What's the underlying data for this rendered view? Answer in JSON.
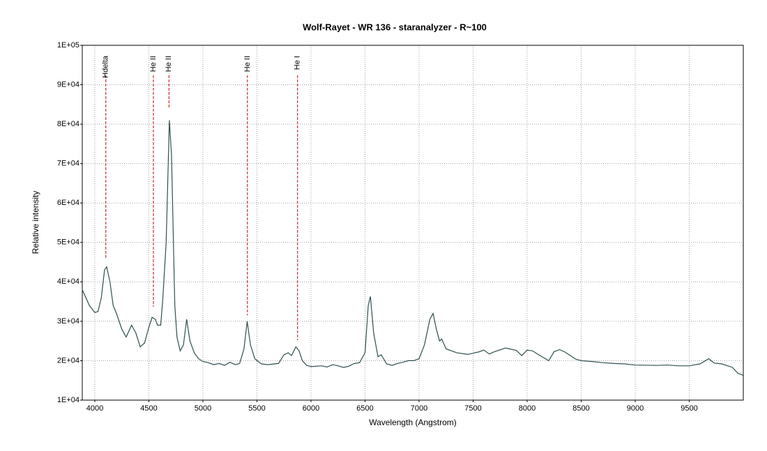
{
  "chart_data": {
    "type": "line",
    "title": "Wolf-Rayet -  WR 136 - staranalyzer - R~100",
    "x_label": "Wavelength (Angstrom)",
    "y_label": "Relative intensity",
    "xlim": [
      3884,
      10000
    ],
    "ylim": [
      10000,
      100000
    ],
    "xticks": [
      4000,
      4500,
      5000,
      5500,
      6000,
      6500,
      7000,
      7500,
      8000,
      8500,
      9000,
      9500
    ],
    "yticks": [
      {
        "value": 10000,
        "label": "1E+04"
      },
      {
        "value": 20000,
        "label": "2E+04"
      },
      {
        "value": 30000,
        "label": "3E+04"
      },
      {
        "value": 40000,
        "label": "4E+04"
      },
      {
        "value": 50000,
        "label": "5E+04"
      },
      {
        "value": 60000,
        "label": "6E+04"
      },
      {
        "value": 70000,
        "label": "7E+04"
      },
      {
        "value": 80000,
        "label": "8E+04"
      },
      {
        "value": 90000,
        "label": "9E+04"
      },
      {
        "value": 100000,
        "label": "1E+05"
      }
    ],
    "grid": true,
    "series": [
      {
        "color": "#2f4f4f",
        "x": [
          3884,
          3950,
          4000,
          4030,
          4060,
          4090,
          4110,
          4140,
          4170,
          4200,
          4250,
          4290,
          4340,
          4380,
          4420,
          4460,
          4500,
          4530,
          4560,
          4580,
          4610,
          4630,
          4660,
          4690,
          4710,
          4740,
          4760,
          4790,
          4820,
          4850,
          4880,
          4920,
          4960,
          5000,
          5050,
          5100,
          5150,
          5200,
          5250,
          5300,
          5340,
          5380,
          5410,
          5440,
          5480,
          5540,
          5600,
          5700,
          5750,
          5790,
          5820,
          5860,
          5890,
          5920,
          5960,
          6000,
          6100,
          6150,
          6200,
          6250,
          6300,
          6350,
          6400,
          6450,
          6500,
          6530,
          6550,
          6580,
          6620,
          6650,
          6700,
          6750,
          6800,
          6850,
          6900,
          6950,
          7000,
          7050,
          7100,
          7130,
          7160,
          7190,
          7210,
          7250,
          7350,
          7450,
          7550,
          7600,
          7650,
          7700,
          7800,
          7900,
          7950,
          8000,
          8050,
          8100,
          8200,
          8250,
          8300,
          8350,
          8450,
          8500,
          8600,
          8700,
          8800,
          8900,
          9000,
          9200,
          9300,
          9400,
          9500,
          9600,
          9680,
          9730,
          9800,
          9900,
          9950,
          10000
        ],
        "values": [
          38000,
          34000,
          32200,
          32500,
          36000,
          43000,
          43800,
          40000,
          34000,
          32000,
          28000,
          26000,
          29000,
          27000,
          23500,
          24500,
          28500,
          31000,
          30500,
          29000,
          29000,
          36000,
          50000,
          81000,
          72000,
          34000,
          26000,
          22500,
          24000,
          30500,
          25000,
          22000,
          20500,
          19800,
          19500,
          19000,
          19300,
          18800,
          19600,
          19000,
          19300,
          23000,
          30000,
          24000,
          20500,
          19200,
          19000,
          19300,
          21500,
          22000,
          21300,
          23500,
          22500,
          20000,
          18800,
          18500,
          18700,
          18400,
          19000,
          18700,
          18300,
          18600,
          19300,
          19500,
          22000,
          34000,
          36300,
          27000,
          21000,
          21500,
          19200,
          18800,
          19300,
          19600,
          20000,
          20000,
          20500,
          24000,
          30500,
          32000,
          28000,
          25000,
          25500,
          23000,
          22000,
          21600,
          22200,
          22700,
          21700,
          22300,
          23200,
          22600,
          21300,
          22700,
          22500,
          21600,
          20000,
          22300,
          22800,
          22200,
          20400,
          20000,
          19800,
          19500,
          19300,
          19200,
          18900,
          18800,
          18900,
          18700,
          18700,
          19200,
          20500,
          19400,
          19200,
          18300,
          16800,
          16300
        ]
      }
    ],
    "annotations": [
      {
        "label": "Hdelta",
        "x": 4102,
        "y": 46000,
        "color": "#cc0000"
      },
      {
        "label": "He II",
        "x": 4542,
        "y": 33700,
        "color": "#cc0000"
      },
      {
        "label": "He II",
        "x": 4686,
        "y": 84000,
        "color": "#cc0000"
      },
      {
        "label": "He II",
        "x": 5412,
        "y": 31500,
        "color": "#cc0000"
      },
      {
        "label": "He I",
        "x": 5876,
        "y": 25200,
        "color": "#cc0000"
      }
    ]
  }
}
